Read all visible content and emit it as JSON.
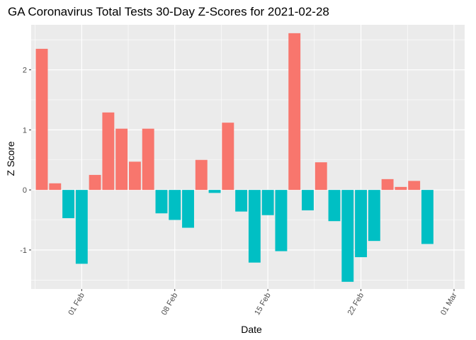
{
  "chart_data": {
    "type": "bar",
    "title": "GA Coronavirus Total Tests 30-Day Z-Scores for 2021-02-28",
    "xlabel": "Date",
    "ylabel": "Z Score",
    "ylim": [
      -1.65,
      2.75
    ],
    "y_ticks": [
      -1,
      0,
      1,
      2
    ],
    "x_ticks": [
      {
        "label": "01 Feb",
        "day": 1
      },
      {
        "label": "08 Feb",
        "day": 8
      },
      {
        "label": "15 Feb",
        "day": 15
      },
      {
        "label": "22 Feb",
        "day": 22
      },
      {
        "label": "01 Mar",
        "day": 29
      }
    ],
    "x_range_days": [
      -2.8,
      29.8
    ],
    "dates": [
      "2021-01-29",
      "2021-01-30",
      "2021-01-31",
      "2021-02-01",
      "2021-02-02",
      "2021-02-03",
      "2021-02-04",
      "2021-02-05",
      "2021-02-06",
      "2021-02-07",
      "2021-02-08",
      "2021-02-09",
      "2021-02-10",
      "2021-02-11",
      "2021-02-12",
      "2021-02-13",
      "2021-02-14",
      "2021-02-15",
      "2021-02-16",
      "2021-02-17",
      "2021-02-18",
      "2021-02-19",
      "2021-02-20",
      "2021-02-21",
      "2021-02-22",
      "2021-02-23",
      "2021-02-24",
      "2021-02-25",
      "2021-02-26",
      "2021-02-27",
      "2021-02-28"
    ],
    "days": [
      -2,
      -1,
      0,
      1,
      2,
      3,
      4,
      5,
      6,
      7,
      8,
      9,
      10,
      11,
      12,
      13,
      14,
      15,
      16,
      17,
      18,
      19,
      20,
      21,
      22,
      23,
      24,
      25,
      26,
      27,
      28
    ],
    "values": [
      2.35,
      0.11,
      -0.47,
      -1.23,
      0.25,
      1.29,
      1.02,
      0.47,
      1.02,
      -0.39,
      -0.5,
      -0.63,
      0.5,
      -0.05,
      1.12,
      -0.36,
      -1.21,
      -0.42,
      -1.02,
      2.61,
      -0.34,
      0.46,
      -0.52,
      -1.53,
      -1.12,
      -0.85,
      0.18,
      0.05,
      0.15,
      -0.9,
      0.0
    ],
    "colors": {
      "positive": "#F8766D",
      "negative": "#00BFC4"
    },
    "panel_background": "#EBEBEB",
    "grid_color": "#FFFFFF"
  }
}
